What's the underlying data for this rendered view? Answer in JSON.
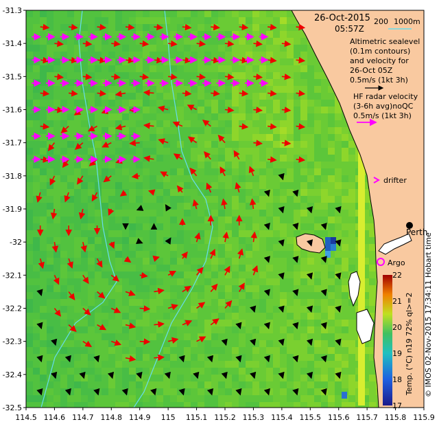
{
  "title": {
    "date": "26-Oct-2015",
    "time": "05:57Z"
  },
  "bathymetry_legend": {
    "label_200": "200",
    "label_1000": "1000m"
  },
  "legend_text": {
    "alt_line1": "Altimetric sealevel",
    "alt_line2": "(0.1m contours)",
    "alt_line3": "and velocity for",
    "alt_line4": "26-Oct 05Z",
    "alt_line5": "0.5m/s (1kt 3h)",
    "hf_line1": "HF radar velocity",
    "hf_line2": "(3-6h avg)noQC",
    "hf_line3": "0.5m/s (1kt 3h)",
    "drifter": "drifter",
    "argo": "Argo",
    "perth": "Perth"
  },
  "colorbar": {
    "label": "Temp. (°C) n19 72% ql>=2",
    "ticks": [
      "22",
      "21",
      "20",
      "19",
      "18",
      "17"
    ],
    "min": 17,
    "max": 22
  },
  "credit": "© IMOS 02-Nov-2015 17:34:11 Hobart time",
  "axes": {
    "x_ticks": [
      "114.5",
      "114.6",
      "114.7",
      "114.8",
      "114.9",
      "115",
      "115.1",
      "115.2",
      "115.3",
      "115.4",
      "115.5",
      "115.6",
      "115.7",
      "115.8",
      "115.9"
    ],
    "y_ticks": [
      "-31.3",
      "-31.4",
      "-31.5",
      "-31.6",
      "-31.7",
      "-31.8",
      "-31.9",
      "-32",
      "-32.1",
      "-32.2",
      "-32.3",
      "-32.4",
      "-32.5"
    ],
    "xlim": [
      114.5,
      115.9
    ],
    "ylim": [
      -32.5,
      -31.3
    ]
  },
  "colors": {
    "land": "#f9c9a0",
    "altimetry_arrow": "#ee0000",
    "hf_arrow": "#ff00ff",
    "bathy_contour": "#66ddee",
    "argo": "#ff00ff"
  }
}
